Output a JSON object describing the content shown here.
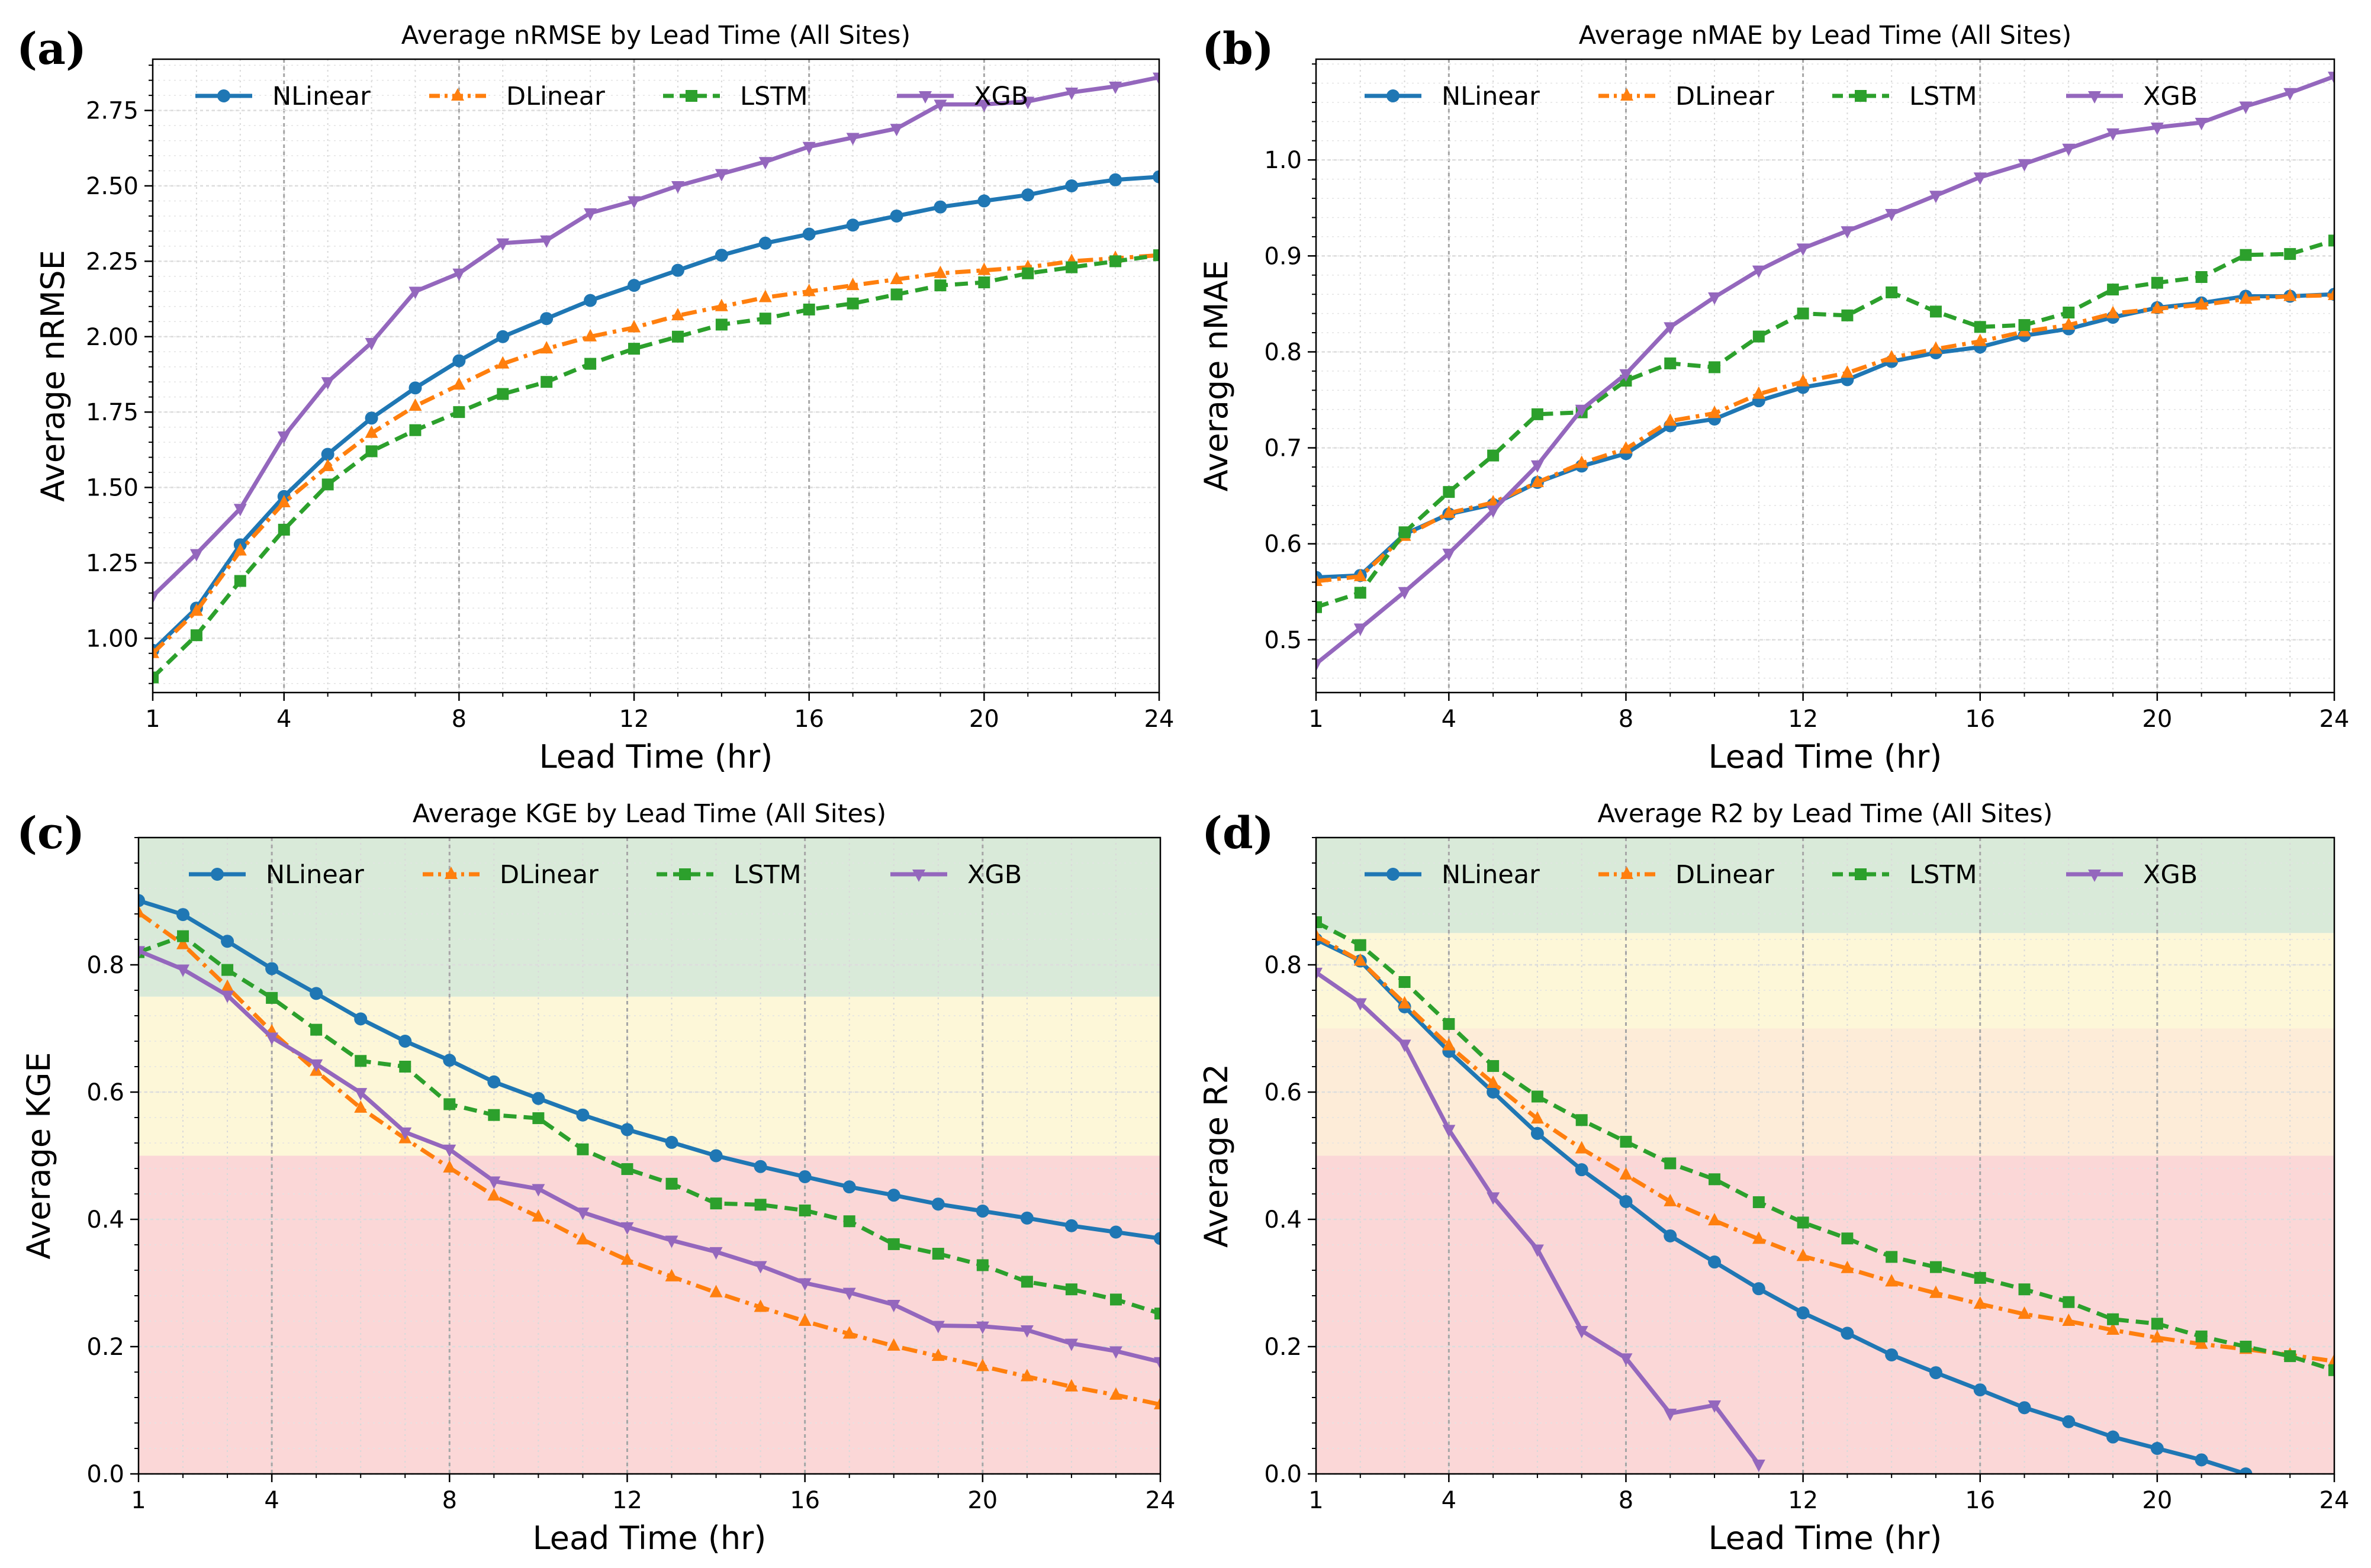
{
  "colors": {
    "NLinear": "#1f77b4",
    "DLinear": "#ff7f0e",
    "LSTM": "#2ca02c",
    "XGB": "#9467bd",
    "zone_good": "#d9ead9",
    "zone_fair": "#fdf7d8",
    "zone_mid": "#fdecd8",
    "zone_poor": "#fbd7d7"
  },
  "chart_data": [
    {
      "id": "a",
      "letter": "(a)",
      "type": "line",
      "title": "Average nRMSE by Lead Time (All Sites)",
      "xlabel": "Lead Time (hr)",
      "ylabel": "Average nRMSE",
      "xlim": [
        1,
        24
      ],
      "ylim": [
        0.82,
        2.92
      ],
      "xticks": [
        1,
        4,
        8,
        12,
        16,
        20,
        24
      ],
      "yticks": [
        1.0,
        1.25,
        1.5,
        1.75,
        2.0,
        2.25,
        2.5,
        2.75
      ],
      "ytick_labels": [
        "1.00",
        "1.25",
        "1.50",
        "1.75",
        "2.00",
        "2.25",
        "2.50",
        "2.75"
      ],
      "grid": true,
      "legend": [
        "NLinear",
        "DLinear",
        "LSTM",
        "XGB"
      ],
      "legend_position": "top",
      "zones": [],
      "x": [
        1,
        2,
        3,
        4,
        5,
        6,
        7,
        8,
        9,
        10,
        11,
        12,
        13,
        14,
        15,
        16,
        17,
        18,
        19,
        20,
        21,
        22,
        23,
        24
      ],
      "series": [
        {
          "name": "NLinear",
          "values": [
            0.96,
            1.1,
            1.31,
            1.47,
            1.61,
            1.73,
            1.83,
            1.92,
            2.0,
            2.06,
            2.12,
            2.17,
            2.22,
            2.27,
            2.31,
            2.34,
            2.37,
            2.4,
            2.43,
            2.45,
            2.47,
            2.5,
            2.52,
            2.53
          ]
        },
        {
          "name": "DLinear",
          "values": [
            0.95,
            1.09,
            1.29,
            1.45,
            1.57,
            1.68,
            1.77,
            1.84,
            1.91,
            1.96,
            2.0,
            2.03,
            2.07,
            2.1,
            2.13,
            2.15,
            2.17,
            2.19,
            2.21,
            2.22,
            2.23,
            2.25,
            2.26,
            2.27
          ]
        },
        {
          "name": "LSTM",
          "values": [
            0.87,
            1.01,
            1.19,
            1.36,
            1.51,
            1.62,
            1.69,
            1.75,
            1.81,
            1.85,
            1.91,
            1.96,
            2.0,
            2.04,
            2.06,
            2.09,
            2.11,
            2.14,
            2.17,
            2.18,
            2.21,
            2.23,
            2.25,
            2.27
          ]
        },
        {
          "name": "XGB",
          "values": [
            1.14,
            1.28,
            1.43,
            1.67,
            1.85,
            1.98,
            2.15,
            2.21,
            2.31,
            2.32,
            2.41,
            2.45,
            2.5,
            2.54,
            2.58,
            2.63,
            2.66,
            2.69,
            2.77,
            2.77,
            2.78,
            2.81,
            2.83,
            2.86
          ]
        }
      ]
    },
    {
      "id": "b",
      "letter": "(b)",
      "type": "line",
      "title": "Average nMAE by Lead Time (All Sites)",
      "xlabel": "Lead Time (hr)",
      "ylabel": "Average nMAE",
      "xlim": [
        1,
        24
      ],
      "ylim": [
        0.445,
        1.105
      ],
      "xticks": [
        1,
        4,
        8,
        12,
        16,
        20,
        24
      ],
      "yticks": [
        0.5,
        0.6,
        0.7,
        0.8,
        0.9,
        1.0
      ],
      "ytick_labels": [
        "0.5",
        "0.6",
        "0.7",
        "0.8",
        "0.9",
        "1.0"
      ],
      "grid": true,
      "legend": [
        "NLinear",
        "DLinear",
        "LSTM",
        "XGB"
      ],
      "legend_position": "top",
      "zones": [],
      "x": [
        1,
        2,
        3,
        4,
        5,
        6,
        7,
        8,
        9,
        10,
        11,
        12,
        13,
        14,
        15,
        16,
        17,
        18,
        19,
        20,
        21,
        22,
        23,
        24
      ],
      "series": [
        {
          "name": "NLinear",
          "values": [
            0.565,
            0.567,
            0.61,
            0.631,
            0.641,
            0.664,
            0.681,
            0.694,
            0.723,
            0.73,
            0.749,
            0.763,
            0.771,
            0.79,
            0.799,
            0.805,
            0.817,
            0.824,
            0.836,
            0.846,
            0.851,
            0.858,
            0.858,
            0.86
          ]
        },
        {
          "name": "DLinear",
          "values": [
            0.561,
            0.566,
            0.608,
            0.632,
            0.643,
            0.664,
            0.684,
            0.699,
            0.728,
            0.736,
            0.756,
            0.769,
            0.778,
            0.794,
            0.803,
            0.811,
            0.821,
            0.828,
            0.84,
            0.845,
            0.849,
            0.855,
            0.858,
            0.859
          ]
        },
        {
          "name": "LSTM",
          "values": [
            0.534,
            0.549,
            0.612,
            0.654,
            0.692,
            0.735,
            0.737,
            0.77,
            0.788,
            0.784,
            0.816,
            0.84,
            0.838,
            0.862,
            0.842,
            0.826,
            0.828,
            0.841,
            0.865,
            0.872,
            0.878,
            0.901,
            0.902,
            0.916
          ]
        },
        {
          "name": "XGB",
          "values": [
            0.475,
            0.512,
            0.55,
            0.59,
            0.635,
            0.682,
            0.74,
            0.777,
            0.826,
            0.857,
            0.885,
            0.908,
            0.926,
            0.944,
            0.963,
            0.982,
            0.996,
            1.012,
            1.028,
            1.034,
            1.039,
            1.056,
            1.07,
            1.087
          ]
        }
      ]
    },
    {
      "id": "c",
      "letter": "(c)",
      "type": "line",
      "title": "Average KGE by Lead Time (All Sites)",
      "xlabel": "Lead Time (hr)",
      "ylabel": "Average KGE",
      "xlim": [
        1,
        24
      ],
      "ylim": [
        0.0,
        1.0
      ],
      "xticks": [
        1,
        4,
        8,
        12,
        16,
        20,
        24
      ],
      "yticks": [
        0.0,
        0.2,
        0.4,
        0.6,
        0.8
      ],
      "ytick_labels": [
        "0.0",
        "0.2",
        "0.4",
        "0.6",
        "0.8"
      ],
      "grid": true,
      "legend": [
        "NLinear",
        "DLinear",
        "LSTM",
        "XGB"
      ],
      "legend_position": "top",
      "zones": [
        {
          "from": 0.0,
          "to": 0.5,
          "color": "zone_poor"
        },
        {
          "from": 0.5,
          "to": 0.75,
          "color": "zone_fair"
        },
        {
          "from": 0.75,
          "to": 1.0,
          "color": "zone_good"
        }
      ],
      "x": [
        1,
        2,
        3,
        4,
        5,
        6,
        7,
        8,
        9,
        10,
        11,
        12,
        13,
        14,
        15,
        16,
        17,
        18,
        19,
        20,
        21,
        22,
        23,
        24
      ],
      "series": [
        {
          "name": "NLinear",
          "values": [
            0.901,
            0.879,
            0.837,
            0.794,
            0.755,
            0.715,
            0.68,
            0.65,
            0.616,
            0.59,
            0.564,
            0.541,
            0.521,
            0.5,
            0.483,
            0.467,
            0.451,
            0.438,
            0.424,
            0.413,
            0.402,
            0.39,
            0.38,
            0.37
          ]
        },
        {
          "name": "DLinear",
          "values": [
            0.882,
            0.832,
            0.765,
            0.695,
            0.633,
            0.575,
            0.527,
            0.481,
            0.437,
            0.404,
            0.368,
            0.336,
            0.31,
            0.285,
            0.262,
            0.24,
            0.22,
            0.201,
            0.185,
            0.169,
            0.153,
            0.137,
            0.124,
            0.109
          ]
        },
        {
          "name": "LSTM",
          "values": [
            0.82,
            0.845,
            0.792,
            0.748,
            0.698,
            0.649,
            0.64,
            0.581,
            0.564,
            0.559,
            0.51,
            0.479,
            0.456,
            0.425,
            0.423,
            0.414,
            0.397,
            0.361,
            0.346,
            0.328,
            0.302,
            0.29,
            0.274,
            0.252
          ]
        },
        {
          "name": "XGB",
          "values": [
            0.822,
            0.793,
            0.752,
            0.686,
            0.644,
            0.599,
            0.537,
            0.51,
            0.46,
            0.448,
            0.411,
            0.388,
            0.367,
            0.349,
            0.327,
            0.3,
            0.285,
            0.266,
            0.233,
            0.232,
            0.226,
            0.205,
            0.193,
            0.176
          ]
        }
      ]
    },
    {
      "id": "d",
      "letter": "(d)",
      "type": "line",
      "title": "Average R2 by Lead Time (All Sites)",
      "xlabel": "Lead Time (hr)",
      "ylabel": "Average R2",
      "xlim": [
        1,
        24
      ],
      "ylim": [
        0.0,
        1.0
      ],
      "xticks": [
        1,
        4,
        8,
        12,
        16,
        20,
        24
      ],
      "yticks": [
        0.0,
        0.2,
        0.4,
        0.6,
        0.8
      ],
      "ytick_labels": [
        "0.0",
        "0.2",
        "0.4",
        "0.6",
        "0.8"
      ],
      "grid": true,
      "legend": [
        "NLinear",
        "DLinear",
        "LSTM",
        "XGB"
      ],
      "legend_position": "top",
      "zones": [
        {
          "from": 0.0,
          "to": 0.5,
          "color": "zone_poor"
        },
        {
          "from": 0.5,
          "to": 0.7,
          "color": "zone_mid"
        },
        {
          "from": 0.7,
          "to": 0.85,
          "color": "zone_fair"
        },
        {
          "from": 0.85,
          "to": 1.0,
          "color": "zone_good"
        }
      ],
      "x": [
        1,
        2,
        3,
        4,
        5,
        6,
        7,
        8,
        9,
        10,
        11,
        12,
        13,
        14,
        15,
        16,
        17,
        18,
        19,
        20,
        21,
        22,
        23,
        24
      ],
      "series": [
        {
          "name": "NLinear",
          "values": [
            0.84,
            0.806,
            0.734,
            0.664,
            0.6,
            0.535,
            0.478,
            0.428,
            0.374,
            0.333,
            0.291,
            0.253,
            0.221,
            0.187,
            0.159,
            0.132,
            0.104,
            0.082,
            0.058,
            0.04,
            0.022,
            0.0,
            null,
            null
          ]
        },
        {
          "name": "DLinear",
          "values": [
            0.845,
            0.806,
            0.739,
            0.673,
            0.614,
            0.558,
            0.511,
            0.47,
            0.428,
            0.398,
            0.369,
            0.342,
            0.323,
            0.302,
            0.284,
            0.267,
            0.251,
            0.24,
            0.226,
            0.214,
            0.204,
            0.196,
            0.187,
            0.177
          ]
        },
        {
          "name": "LSTM",
          "values": [
            0.867,
            0.831,
            0.773,
            0.707,
            0.641,
            0.593,
            0.556,
            0.522,
            0.488,
            0.463,
            0.427,
            0.395,
            0.37,
            0.341,
            0.325,
            0.308,
            0.29,
            0.27,
            0.243,
            0.236,
            0.216,
            0.2,
            0.185,
            0.163
          ]
        },
        {
          "name": "XGB",
          "values": [
            0.788,
            0.74,
            0.675,
            0.541,
            0.435,
            0.353,
            0.225,
            0.182,
            0.095,
            0.108,
            0.015,
            null,
            null,
            null,
            null,
            null,
            null,
            null,
            null,
            null,
            null,
            null,
            null,
            null
          ]
        }
      ]
    }
  ]
}
